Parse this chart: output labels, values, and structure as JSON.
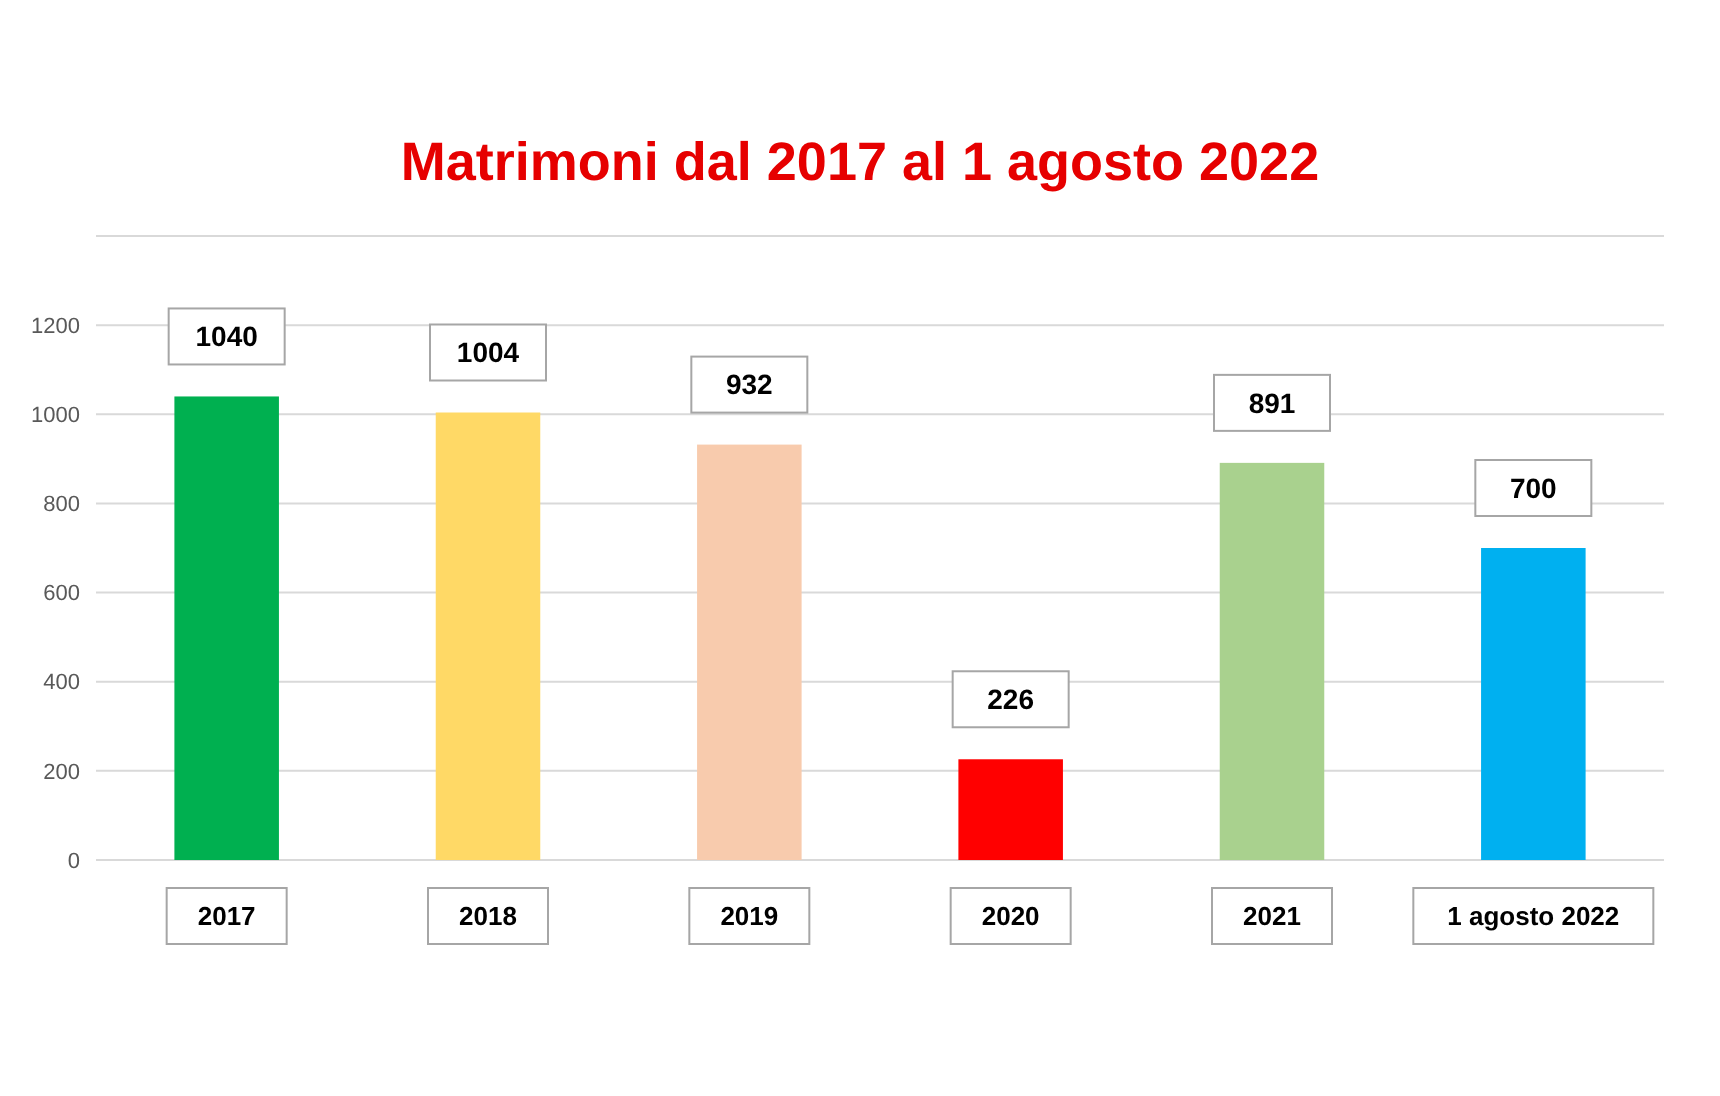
{
  "chart_data": {
    "type": "bar",
    "title": "Matrimoni dal 2017 al 1 agosto 2022",
    "categories": [
      "2017",
      "2018",
      "2019",
      "2020",
      "2021",
      "1 agosto 2022"
    ],
    "values": [
      1040,
      1004,
      932,
      226,
      891,
      700
    ],
    "colors": [
      "#00b050",
      "#ffd966",
      "#f8cbad",
      "#ff0000",
      "#a9d18e",
      "#00b0f0"
    ],
    "ylim": [
      0,
      1400
    ],
    "yticks": [
      0,
      200,
      400,
      600,
      800,
      1000,
      1200,
      {
        "value": 1400,
        "label": null
      }
    ],
    "grid": "y",
    "data_labels": true
  }
}
